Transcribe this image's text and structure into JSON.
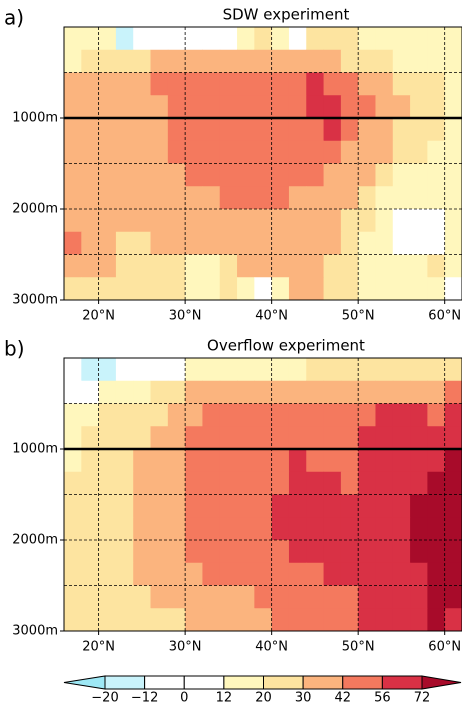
{
  "chart_data": [
    {
      "type": "heatmap",
      "panel_label": "a)",
      "title": "SDW experiment",
      "x": [
        17,
        19,
        21,
        23,
        25,
        27,
        29,
        31,
        33,
        35,
        37,
        39,
        41,
        43,
        45,
        47,
        49,
        51,
        53,
        55,
        57,
        59,
        61
      ],
      "y": [
        125,
        375,
        625,
        875,
        1125,
        1375,
        1625,
        1875,
        2125,
        2375,
        2625,
        2875
      ],
      "z": [
        [
          16,
          16,
          16,
          -15,
          6,
          6,
          6,
          6,
          6,
          6,
          16,
          25,
          16,
          6,
          25,
          25,
          25,
          16,
          16,
          16,
          16,
          16,
          16
        ],
        [
          16,
          25,
          25,
          25,
          25,
          35,
          35,
          35,
          35,
          35,
          35,
          35,
          35,
          35,
          35,
          35,
          25,
          25,
          25,
          16,
          16,
          16,
          16
        ],
        [
          35,
          35,
          35,
          35,
          35,
          48,
          48,
          48,
          48,
          48,
          48,
          48,
          48,
          48,
          62,
          48,
          48,
          35,
          35,
          25,
          25,
          25,
          16
        ],
        [
          35,
          35,
          35,
          35,
          35,
          35,
          48,
          48,
          48,
          48,
          48,
          48,
          48,
          48,
          62,
          62,
          48,
          48,
          35,
          35,
          25,
          25,
          16
        ],
        [
          35,
          35,
          35,
          35,
          35,
          35,
          48,
          48,
          48,
          48,
          48,
          48,
          48,
          48,
          48,
          62,
          48,
          35,
          35,
          25,
          25,
          25,
          16
        ],
        [
          35,
          35,
          35,
          35,
          35,
          35,
          48,
          48,
          48,
          48,
          48,
          48,
          48,
          48,
          48,
          48,
          35,
          35,
          35,
          25,
          25,
          16,
          16
        ],
        [
          35,
          35,
          35,
          35,
          35,
          35,
          35,
          48,
          48,
          48,
          48,
          48,
          48,
          48,
          48,
          35,
          35,
          35,
          25,
          16,
          16,
          16,
          16
        ],
        [
          35,
          35,
          35,
          35,
          35,
          35,
          35,
          35,
          35,
          48,
          48,
          48,
          48,
          35,
          35,
          35,
          35,
          25,
          16,
          16,
          16,
          16,
          16
        ],
        [
          35,
          35,
          35,
          35,
          35,
          35,
          35,
          35,
          35,
          35,
          35,
          35,
          35,
          35,
          35,
          35,
          25,
          25,
          16,
          6,
          6,
          6,
          16
        ],
        [
          48,
          35,
          35,
          25,
          25,
          35,
          35,
          35,
          35,
          35,
          35,
          35,
          35,
          35,
          35,
          35,
          25,
          16,
          16,
          6,
          6,
          6,
          16
        ],
        [
          35,
          35,
          35,
          25,
          25,
          25,
          25,
          16,
          16,
          25,
          35,
          35,
          35,
          35,
          35,
          25,
          25,
          16,
          16,
          16,
          16,
          25,
          16
        ],
        [
          25,
          25,
          25,
          25,
          25,
          25,
          25,
          16,
          16,
          25,
          16,
          6,
          16,
          35,
          35,
          25,
          25,
          16,
          16,
          16,
          16,
          16,
          6
        ]
      ],
      "xlim": [
        16,
        62
      ],
      "ylim": [
        0,
        3000
      ],
      "xticks": [
        {
          "value": 20,
          "label": "20°N"
        },
        {
          "value": 30,
          "label": "30°N"
        },
        {
          "value": 40,
          "label": "40°N"
        },
        {
          "value": 50,
          "label": "50°N"
        },
        {
          "value": 60,
          "label": "60°N"
        }
      ],
      "yticks": [
        {
          "value": 500,
          "label": null
        },
        {
          "value": 1000,
          "label": "1000m"
        },
        {
          "value": 1500,
          "label": null
        },
        {
          "value": 2000,
          "label": "2000m"
        },
        {
          "value": 2500,
          "label": null
        },
        {
          "value": 3000,
          "label": "3000m"
        }
      ],
      "reference_line": 1000,
      "grid": true
    },
    {
      "type": "heatmap",
      "panel_label": "b)",
      "title": "Overflow experiment",
      "x": [
        17,
        19,
        21,
        23,
        25,
        27,
        29,
        31,
        33,
        35,
        37,
        39,
        41,
        43,
        45,
        47,
        49,
        51,
        53,
        55,
        57,
        59,
        61
      ],
      "y": [
        125,
        375,
        625,
        875,
        1125,
        1375,
        1625,
        1875,
        2125,
        2375,
        2625,
        2875
      ],
      "z": [
        [
          6,
          -15,
          -15,
          6,
          6,
          6,
          6,
          16,
          16,
          16,
          16,
          16,
          16,
          16,
          25,
          25,
          25,
          25,
          25,
          25,
          25,
          25,
          25
        ],
        [
          6,
          6,
          16,
          16,
          16,
          25,
          25,
          35,
          35,
          35,
          35,
          35,
          35,
          35,
          35,
          35,
          35,
          35,
          35,
          35,
          35,
          35,
          48
        ],
        [
          16,
          16,
          25,
          25,
          25,
          25,
          35,
          35,
          48,
          48,
          48,
          48,
          48,
          48,
          48,
          48,
          48,
          48,
          62,
          62,
          62,
          48,
          62
        ],
        [
          16,
          25,
          25,
          25,
          25,
          35,
          35,
          48,
          48,
          48,
          48,
          48,
          48,
          48,
          48,
          48,
          48,
          62,
          62,
          62,
          62,
          62,
          62
        ],
        [
          16,
          25,
          25,
          25,
          35,
          35,
          35,
          48,
          48,
          48,
          48,
          48,
          48,
          62,
          48,
          48,
          48,
          62,
          62,
          62,
          62,
          62,
          80
        ],
        [
          25,
          25,
          25,
          25,
          35,
          35,
          35,
          48,
          48,
          48,
          48,
          48,
          48,
          62,
          62,
          62,
          48,
          62,
          62,
          62,
          62,
          80,
          80
        ],
        [
          25,
          25,
          25,
          25,
          35,
          35,
          35,
          48,
          48,
          48,
          48,
          48,
          62,
          62,
          62,
          62,
          62,
          62,
          62,
          62,
          80,
          80,
          80
        ],
        [
          25,
          25,
          25,
          25,
          35,
          35,
          35,
          48,
          48,
          48,
          48,
          48,
          62,
          62,
          62,
          62,
          62,
          62,
          62,
          62,
          80,
          80,
          80
        ],
        [
          25,
          25,
          25,
          25,
          35,
          35,
          35,
          48,
          48,
          48,
          48,
          48,
          48,
          62,
          62,
          62,
          62,
          62,
          62,
          62,
          80,
          80,
          80
        ],
        [
          25,
          25,
          25,
          25,
          35,
          35,
          35,
          35,
          48,
          48,
          48,
          48,
          48,
          48,
          48,
          62,
          62,
          62,
          62,
          62,
          62,
          80,
          80
        ],
        [
          25,
          25,
          25,
          25,
          25,
          35,
          35,
          35,
          35,
          35,
          35,
          48,
          48,
          48,
          48,
          48,
          48,
          62,
          62,
          62,
          62,
          80,
          80
        ],
        [
          25,
          25,
          25,
          25,
          25,
          25,
          25,
          35,
          35,
          35,
          35,
          35,
          48,
          48,
          48,
          48,
          48,
          62,
          62,
          62,
          62,
          80,
          62
        ]
      ],
      "xlim": [
        16,
        62
      ],
      "ylim": [
        0,
        3000
      ],
      "xticks": [
        {
          "value": 20,
          "label": "20°N"
        },
        {
          "value": 30,
          "label": "30°N"
        },
        {
          "value": 40,
          "label": "40°N"
        },
        {
          "value": 50,
          "label": "50°N"
        },
        {
          "value": 60,
          "label": "60°N"
        }
      ],
      "yticks": [
        {
          "value": 500,
          "label": null
        },
        {
          "value": 1000,
          "label": "1000m"
        },
        {
          "value": 1500,
          "label": null
        },
        {
          "value": 2000,
          "label": "2000m"
        },
        {
          "value": 2500,
          "label": null
        },
        {
          "value": 3000,
          "label": "3000m"
        }
      ],
      "reference_line": 1000,
      "grid": true
    }
  ],
  "colorbar": {
    "levels": [
      {
        "value": -20,
        "label": "−20"
      },
      {
        "value": -12,
        "label": "−12"
      },
      0,
      12,
      20,
      30,
      42,
      56,
      72
    ],
    "colors": [
      "#9ee8f5",
      "#c9f3fb",
      "#ffffff",
      "#ffffff",
      "#fff7bd",
      "#fde4a0",
      "#fbb47e",
      "#f4795e",
      "#d93145",
      "#a80b2a"
    ]
  }
}
